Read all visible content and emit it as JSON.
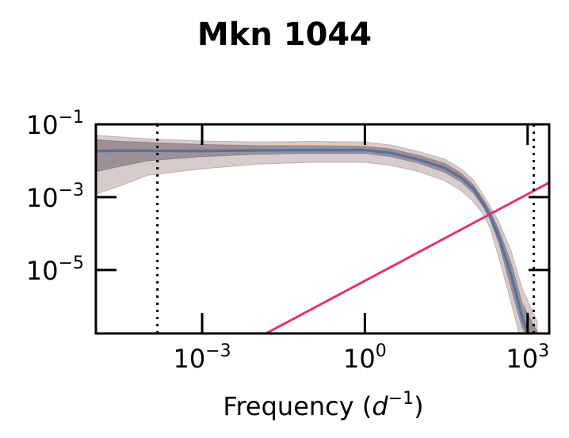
{
  "chart_data": {
    "type": "line",
    "title": "Mkn 1044",
    "xlabel": "Frequency (d⁻¹)",
    "xlabel_parts": {
      "main": "Frequency (",
      "var": "d",
      "exp": "−1",
      "close": ")"
    },
    "ylabel": "",
    "xscale": "log",
    "yscale": "log",
    "xlim": [
      1.1e-05,
      2500
    ],
    "ylim": [
      1.8e-07,
      0.1
    ],
    "x_ticks": [
      {
        "value": 0.001,
        "base": "10",
        "exp": "−3"
      },
      {
        "value": 1,
        "base": "10",
        "exp": "0"
      },
      {
        "value": 1000,
        "base": "10",
        "exp": "3"
      }
    ],
    "y_ticks": [
      {
        "value": 0.1,
        "base": "10",
        "exp": "−1"
      },
      {
        "value": 0.001,
        "base": "10",
        "exp": "−3"
      },
      {
        "value": 1e-05,
        "base": "10",
        "exp": "−5"
      }
    ],
    "vlines": [
      {
        "x": 0.00015,
        "style": "dotted",
        "color": "#000000"
      },
      {
        "x": 1300,
        "style": "dotted",
        "color": "#000000"
      }
    ],
    "series": [
      {
        "role": "outer-band",
        "color": "#8b6b6b",
        "x": [
          1.1e-05,
          3e-05,
          0.0001,
          0.001,
          0.01,
          0.1,
          1,
          3,
          10,
          30,
          60,
          100,
          150,
          200,
          300,
          500,
          800,
          1500
        ],
        "low": [
          0.0012,
          0.002,
          0.004,
          0.006,
          0.008,
          0.009,
          0.009,
          0.0075,
          0.005,
          0.0028,
          0.0015,
          0.00075,
          0.00035,
          0.00015,
          2e-05,
          1.2e-06,
          8e-08,
          1.8e-08
        ],
        "high": [
          0.05,
          0.045,
          0.04,
          0.035,
          0.033,
          0.034,
          0.033,
          0.027,
          0.018,
          0.011,
          0.006,
          0.003,
          0.0012,
          0.0006,
          0.0002,
          3.2e-05,
          3e-06,
          4e-07
        ]
      },
      {
        "role": "inner-band",
        "color": "#5a4a5a",
        "x": [
          1.1e-05,
          3e-05,
          0.0001,
          0.001,
          0.01,
          0.1,
          1,
          3,
          10,
          30,
          60,
          100,
          150,
          200,
          300,
          500,
          800,
          1500
        ],
        "low": [
          0.005,
          0.007,
          0.01,
          0.013,
          0.015,
          0.016,
          0.016,
          0.013,
          0.0085,
          0.0048,
          0.0026,
          0.0013,
          0.00055,
          0.00026,
          5e-05,
          3e-06,
          2.5e-07,
          6e-08
        ],
        "high": [
          0.038,
          0.034,
          0.032,
          0.028,
          0.026,
          0.026,
          0.025,
          0.021,
          0.014,
          0.0085,
          0.0045,
          0.0022,
          0.0009,
          0.00045,
          0.00012,
          1.5e-05,
          1.2e-06,
          2e-07
        ]
      },
      {
        "role": "line-orange",
        "color": "#e07b48",
        "x": [
          1.1e-05,
          3e-05,
          0.0001,
          0.001,
          0.01,
          0.1,
          1,
          3,
          10,
          30,
          60,
          100,
          150,
          200,
          300,
          500,
          800,
          1200
        ],
        "y": [
          0.0192,
          0.0196,
          0.0194,
          0.0192,
          0.0198,
          0.0202,
          0.0202,
          0.0172,
          0.0112,
          0.0066,
          0.0036,
          0.0018,
          0.00072,
          0.00034,
          8e-05,
          7.5e-06,
          5.5e-07,
          1e-07
        ]
      },
      {
        "role": "line-blue",
        "color": "#4a77a8",
        "x": [
          1.1e-05,
          3e-05,
          0.0001,
          0.001,
          0.01,
          0.1,
          1,
          3,
          10,
          30,
          60,
          100,
          150,
          200,
          300,
          500,
          800,
          1200
        ],
        "y": [
          0.0185,
          0.019,
          0.0188,
          0.0186,
          0.0192,
          0.0196,
          0.0196,
          0.0165,
          0.0107,
          0.0063,
          0.0034,
          0.0017,
          0.00068,
          0.00032,
          7.5e-05,
          7e-06,
          5e-07,
          9e-08
        ]
      },
      {
        "role": "line-pink",
        "color": "#e6336e",
        "x": [
          0.01,
          2500
        ],
        "y": [
          1.3e-07,
          0.0025
        ]
      }
    ]
  }
}
